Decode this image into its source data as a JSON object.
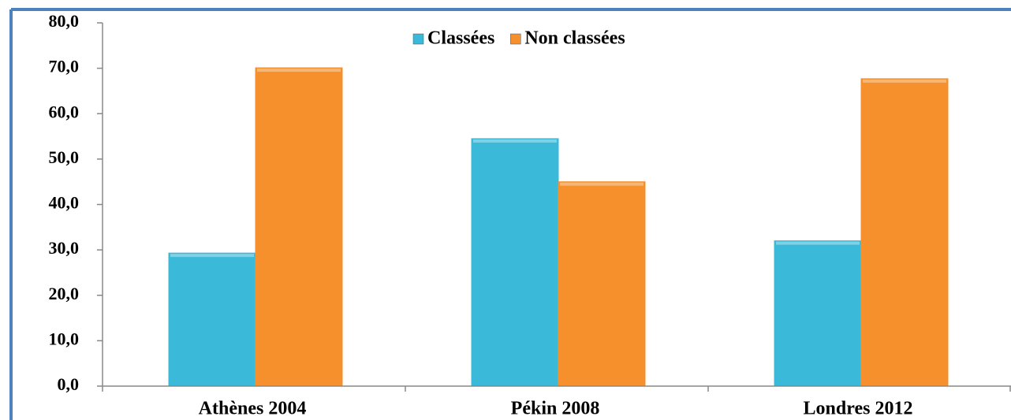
{
  "chart_data": {
    "type": "bar",
    "categories": [
      "Athènes 2004",
      "Pékin 2008",
      "Londres 2012"
    ],
    "series": [
      {
        "name": "Classées",
        "color": "#3bb9d8",
        "values": [
          29.3,
          54.5,
          32.0
        ]
      },
      {
        "name": "Non classées",
        "color": "#f5902c",
        "values": [
          70.1,
          45.0,
          67.7
        ]
      }
    ],
    "ylim": [
      0,
      80
    ],
    "yticks": [
      {
        "value": 0,
        "label": "0,0"
      },
      {
        "value": 10,
        "label": "10,0"
      },
      {
        "value": 20,
        "label": "20,0"
      },
      {
        "value": 30,
        "label": "30,0"
      },
      {
        "value": 40,
        "label": "40,0"
      },
      {
        "value": 50,
        "label": "50,0"
      },
      {
        "value": 60,
        "label": "60,0"
      },
      {
        "value": 70,
        "label": "70,0"
      },
      {
        "value": 80,
        "label": "80,0"
      }
    ],
    "legend": "top"
  }
}
